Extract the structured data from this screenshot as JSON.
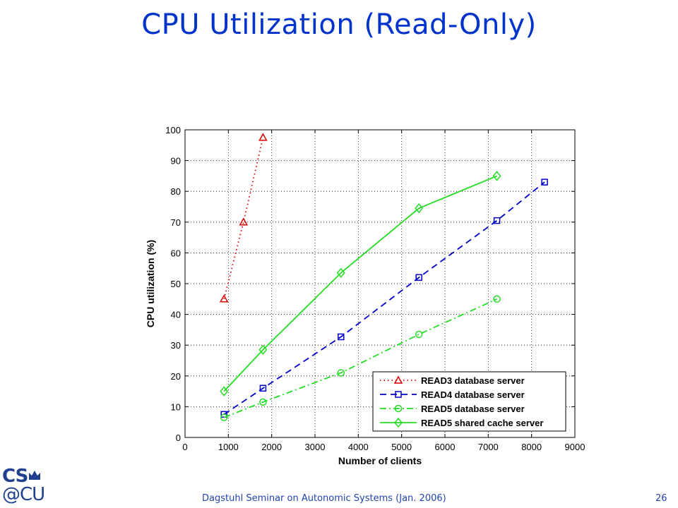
{
  "slide": {
    "title": "CPU Utilization (Read-Only)",
    "footer": "Dagstuhl Seminar on Autonomic Systems (Jan. 2006)",
    "page_number": "26",
    "logo_top": "CS",
    "logo_bottom": "@CU"
  },
  "colors": {
    "title": "#0033cc",
    "red": "#e00000",
    "blue": "#0000cc",
    "green": "#22dd22"
  },
  "chart_data": {
    "type": "line",
    "title": "",
    "xlabel": "Number of clients",
    "ylabel": "CPU utilization (%)",
    "xlim": [
      0,
      9000
    ],
    "ylim": [
      0,
      100
    ],
    "xticks": [
      0,
      1000,
      2000,
      3000,
      4000,
      5000,
      6000,
      7000,
      8000,
      9000
    ],
    "yticks": [
      0,
      10,
      20,
      30,
      40,
      50,
      60,
      70,
      80,
      90,
      100
    ],
    "grid": true,
    "legend_position": "bottom-right",
    "series": [
      {
        "name": "READ3 database server",
        "color": "#e00000",
        "line_style": "dotted",
        "marker": "triangle",
        "x": [
          900,
          1350,
          1800
        ],
        "y": [
          45,
          70,
          97.5
        ]
      },
      {
        "name": "READ4 database server",
        "color": "#0000cc",
        "line_style": "dashed",
        "marker": "square",
        "x": [
          900,
          1800,
          3600,
          5400,
          7200,
          8300
        ],
        "y": [
          7.5,
          16,
          32.7,
          52,
          70.5,
          83
        ]
      },
      {
        "name": "READ5 database server",
        "color": "#22dd22",
        "line_style": "dash-dot",
        "marker": "circle",
        "x": [
          900,
          1800,
          3600,
          5400,
          7200
        ],
        "y": [
          6.5,
          11.5,
          21,
          33.5,
          45
        ]
      },
      {
        "name": "READ5 shared cache server",
        "color": "#22dd22",
        "line_style": "solid",
        "marker": "diamond",
        "x": [
          900,
          1800,
          3600,
          5400,
          7200
        ],
        "y": [
          15,
          28.5,
          53.5,
          74.5,
          85
        ]
      }
    ]
  }
}
